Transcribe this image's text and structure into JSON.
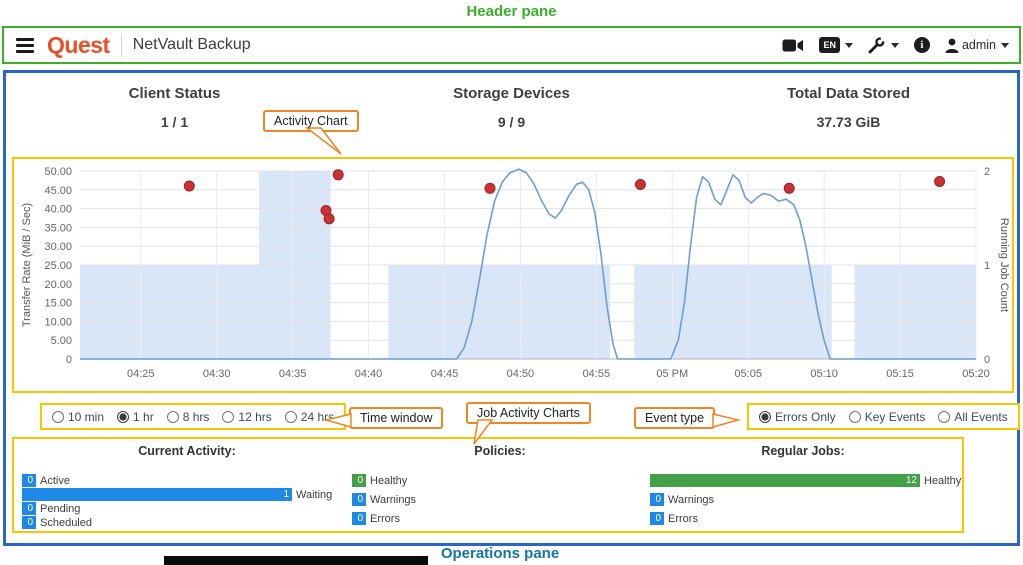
{
  "pane_labels": {
    "top": "Header pane",
    "bottom": "Operations pane"
  },
  "header": {
    "brand": "Quest",
    "app_title": "NetVault Backup",
    "language_badge": "EN",
    "info_glyph": "i",
    "user": "admin"
  },
  "summary_tiles": [
    {
      "label": "Client Status",
      "value": "1 / 1"
    },
    {
      "label": "Storage Devices",
      "value": "9 / 9"
    },
    {
      "label": "Total Data Stored",
      "value": "37.73 GiB"
    }
  ],
  "callouts": {
    "activity_chart": "Activity Chart",
    "time_window": "Time window",
    "job_activity_charts": "Job Activity Charts",
    "event_type": "Event type"
  },
  "time_window": {
    "options": [
      "10 min",
      "1 hr",
      "8 hrs",
      "12 hrs",
      "24 hrs"
    ],
    "selected": "1 hr"
  },
  "event_type": {
    "options": [
      "Errors Only",
      "Key Events",
      "All Events"
    ],
    "selected": "Errors Only"
  },
  "chart_data": {
    "type": "line",
    "title": "Activity Chart",
    "x_axis": {
      "tick_labels": [
        "04:25",
        "04:30",
        "04:35",
        "04:40",
        "04:45",
        "04:50",
        "04:55",
        "05 PM",
        "05:05",
        "05:10",
        "05:15",
        "05:20"
      ],
      "tick_minutes": [
        25,
        30,
        35,
        40,
        45,
        50,
        55,
        60,
        65,
        70,
        75,
        80
      ],
      "domain_minutes": [
        21,
        80
      ]
    },
    "y_left": {
      "label": "Transfer Rate (MiB / Sec)",
      "tick_labels": [
        "50.00",
        "45.00",
        "40.00",
        "35.00",
        "30.00",
        "25.00",
        "20.00",
        "15.00",
        "10.00",
        "5.00",
        "0"
      ],
      "tick_values": [
        50,
        45,
        40,
        35,
        30,
        25,
        20,
        15,
        10,
        5,
        0
      ],
      "max": 50
    },
    "y_right": {
      "label": "Running Job Count",
      "tick_labels": [
        "2",
        "1",
        "0"
      ],
      "tick_values": [
        2,
        1,
        0
      ],
      "max": 2
    },
    "series": [
      {
        "name": "Running Job Count",
        "kind": "step-area",
        "axis": "right",
        "color": "#d9e6f8",
        "steps": [
          [
            21,
            32.8,
            1
          ],
          [
            32.8,
            37.5,
            2
          ],
          [
            37.5,
            41.3,
            0
          ],
          [
            41.3,
            55.9,
            1
          ],
          [
            55.9,
            57.5,
            0
          ],
          [
            57.5,
            70.5,
            1
          ],
          [
            70.5,
            72,
            0
          ],
          [
            72,
            80,
            1
          ]
        ]
      },
      {
        "name": "Transfer Rate",
        "kind": "line",
        "axis": "left",
        "color": "#6f9ecf",
        "points": [
          [
            21,
            0
          ],
          [
            45.8,
            0
          ],
          [
            46.3,
            3
          ],
          [
            46.8,
            10
          ],
          [
            47.3,
            21
          ],
          [
            47.8,
            33
          ],
          [
            48.3,
            42
          ],
          [
            48.8,
            47
          ],
          [
            49.3,
            49.5
          ],
          [
            49.9,
            50.5
          ],
          [
            50.4,
            49.5
          ],
          [
            50.9,
            46.5
          ],
          [
            51.4,
            42
          ],
          [
            51.9,
            38.5
          ],
          [
            52.3,
            37.5
          ],
          [
            52.7,
            39.5
          ],
          [
            53.2,
            43.5
          ],
          [
            53.7,
            46.5
          ],
          [
            54.1,
            47
          ],
          [
            54.5,
            45
          ],
          [
            54.9,
            39
          ],
          [
            55.3,
            28
          ],
          [
            55.7,
            14
          ],
          [
            56.1,
            4
          ],
          [
            56.4,
            0
          ],
          [
            59.9,
            0
          ],
          [
            60.4,
            5
          ],
          [
            60.8,
            15
          ],
          [
            61.2,
            30
          ],
          [
            61.6,
            43
          ],
          [
            62,
            48.5
          ],
          [
            62.4,
            47
          ],
          [
            62.8,
            42.5
          ],
          [
            63.2,
            41
          ],
          [
            63.6,
            45
          ],
          [
            64,
            49
          ],
          [
            64.4,
            47.5
          ],
          [
            64.8,
            43
          ],
          [
            65.2,
            41.5
          ],
          [
            65.6,
            43
          ],
          [
            66,
            44
          ],
          [
            66.5,
            43.5
          ],
          [
            67,
            42
          ],
          [
            67.5,
            42.5
          ],
          [
            68,
            41
          ],
          [
            68.4,
            37
          ],
          [
            68.8,
            30
          ],
          [
            69.2,
            21
          ],
          [
            69.6,
            12
          ],
          [
            70,
            5
          ],
          [
            70.4,
            0
          ],
          [
            80,
            0
          ]
        ]
      },
      {
        "name": "Error Events",
        "kind": "scatter",
        "axis": "left",
        "color": "#cb3234",
        "points": [
          [
            28.2,
            46
          ],
          [
            37.2,
            39.5
          ],
          [
            37.4,
            37.3
          ],
          [
            38,
            49
          ],
          [
            48,
            45.4
          ],
          [
            57.9,
            46.4
          ],
          [
            67.7,
            45.4
          ],
          [
            77.6,
            47.2
          ]
        ]
      }
    ]
  },
  "job_activity": {
    "groups": [
      {
        "title": "Current Activity:",
        "rows": [
          {
            "label": "Active",
            "value": 0,
            "color": "#1e88e5"
          },
          {
            "label": "Waiting",
            "value": 1,
            "color": "#1e88e5"
          },
          {
            "label": "Pending",
            "value": 0,
            "color": "#1e88e5"
          },
          {
            "label": "Scheduled",
            "value": 0,
            "color": "#1e88e5"
          }
        ]
      },
      {
        "title": "Policies:",
        "rows": [
          {
            "label": "Healthy",
            "value": 0,
            "color": "#43a047"
          },
          {
            "label": "Warnings",
            "value": 0,
            "color": "#1e88e5"
          },
          {
            "label": "Errors",
            "value": 0,
            "color": "#1e88e5"
          }
        ]
      },
      {
        "title": "Regular Jobs:",
        "rows": [
          {
            "label": "Healthy",
            "value": 12,
            "color": "#43a047"
          },
          {
            "label": "Warnings",
            "value": 0,
            "color": "#1e88e5"
          },
          {
            "label": "Errors",
            "value": 0,
            "color": "#1e88e5"
          }
        ]
      }
    ]
  },
  "colors": {
    "header_green": "#3cae2b",
    "pane_blue": "#2a66c9",
    "highlight_yellow": "#fdc400",
    "callout_orange": "#f08522",
    "brand_red": "#e8502a",
    "operations_teal": "#1474a4",
    "bar_blue": "#1e88e5",
    "bar_green": "#43a047",
    "error_red": "#cb3234",
    "line_blue": "#6f9ecf",
    "area_blue": "#d9e6f8"
  }
}
